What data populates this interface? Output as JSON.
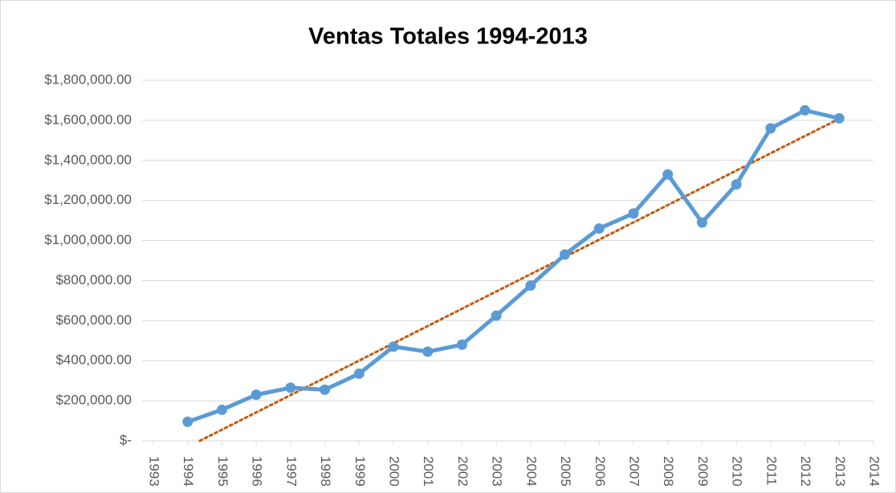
{
  "chart_data": {
    "type": "line",
    "title": "Ventas Totales 1994-2013",
    "x": [
      1994,
      1995,
      1996,
      1997,
      1998,
      1999,
      2000,
      2001,
      2002,
      2003,
      2004,
      2005,
      2006,
      2007,
      2008,
      2009,
      2010,
      2011,
      2012,
      2013
    ],
    "series": [
      {
        "name": "Ventas",
        "color": "#5b9bd5",
        "values": [
          95000,
          155000,
          230000,
          265000,
          255000,
          335000,
          470000,
          445000,
          480000,
          625000,
          775000,
          930000,
          1060000,
          1135000,
          1330000,
          1090000,
          1280000,
          1560000,
          1650000,
          1610000
        ]
      }
    ],
    "trendline": {
      "kind": "linear",
      "color": "#c55a11"
    },
    "xlim": [
      1993,
      2014
    ],
    "xticks": [
      1993,
      1994,
      1995,
      1996,
      1997,
      1998,
      1999,
      2000,
      2001,
      2002,
      2003,
      2004,
      2005,
      2006,
      2007,
      2008,
      2009,
      2010,
      2011,
      2012,
      2013,
      2014
    ],
    "ylim": [
      0,
      1800000
    ],
    "yticks": [
      {
        "value": 0,
        "label": "$-"
      },
      {
        "value": 200000,
        "label": "$200,000.00"
      },
      {
        "value": 400000,
        "label": "$400,000.00"
      },
      {
        "value": 600000,
        "label": "$600,000.00"
      },
      {
        "value": 800000,
        "label": "$800,000.00"
      },
      {
        "value": 1000000,
        "label": "$1,000,000.00"
      },
      {
        "value": 1200000,
        "label": "$1,200,000.00"
      },
      {
        "value": 1400000,
        "label": "$1,400,000.00"
      },
      {
        "value": 1600000,
        "label": "$1,600,000.00"
      },
      {
        "value": 1800000,
        "label": "$1,800,000.00"
      }
    ],
    "grid": true
  }
}
